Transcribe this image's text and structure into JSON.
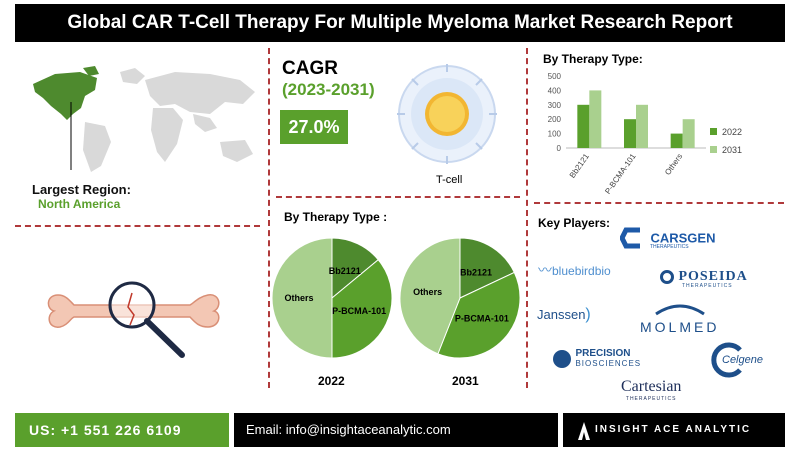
{
  "title": "Global CAR T-Cell Therapy For Multiple Myeloma Market Research Report",
  "region": {
    "label": "Largest Region:",
    "value": "North America"
  },
  "cagr": {
    "label": "CAGR",
    "years": "(2023-2031)",
    "value": "27.0%"
  },
  "cell_label": "T-cell",
  "pies": {
    "title": "By Therapy Type :",
    "years": [
      "2022",
      "2031"
    ],
    "labels": [
      "Bb2121",
      "P-BCMA-101",
      "Others"
    ]
  },
  "players": {
    "title": "Key Players:",
    "logos": [
      "CARSGEN",
      "THERAPEUTICS",
      "bluebirdbio",
      "POSEIDA",
      "THERAPEUTICS",
      "Janssen",
      "MOLMED",
      "PRECISION",
      "BIOSCIENCES",
      "Celgene",
      "Cartesian",
      "THERAPEUTICS"
    ]
  },
  "footer": {
    "phone": "US: +1 551 226 6109",
    "email": "Email: info@insightaceanalytic.com",
    "brand": "INSIGHT ACE ANALYTIC"
  },
  "colors": {
    "dark_green": "#4e8a2e",
    "green": "#5aa02c",
    "light_green": "#8dbd68",
    "pale_green": "#a9d08e",
    "accent_red": "#b0393b"
  },
  "chart_data": [
    {
      "type": "bar",
      "title": "By Therapy Type:",
      "categories": [
        "Bb2121",
        "P-BCMA-101",
        "Others"
      ],
      "series": [
        {
          "name": "2022",
          "values": [
            300,
            200,
            100
          ]
        },
        {
          "name": "2031",
          "values": [
            400,
            300,
            200
          ]
        }
      ],
      "ylim": [
        0,
        500
      ],
      "yticks": [
        0,
        100,
        200,
        300,
        400,
        500
      ],
      "legend": "right",
      "grid": false
    },
    {
      "type": "pie",
      "year": "2022",
      "labels": [
        "Bb2121",
        "P-BCMA-101",
        "Others"
      ],
      "values": [
        14,
        36,
        50
      ]
    },
    {
      "type": "pie",
      "year": "2031",
      "labels": [
        "Bb2121",
        "P-BCMA-101",
        "Others"
      ],
      "values": [
        18,
        38,
        44
      ]
    }
  ]
}
